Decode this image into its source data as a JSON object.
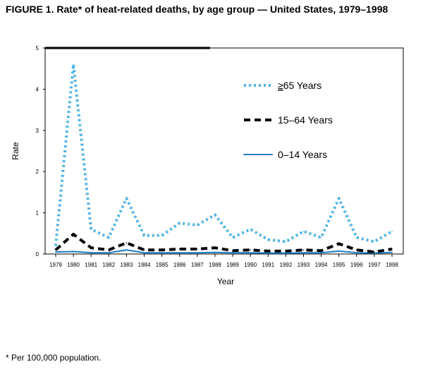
{
  "figure": {
    "title": "FIGURE 1. Rate* of heat-related deaths, by age group — United States, 1979–1998",
    "footnote": "* Per 100,000 population."
  },
  "chart_data": {
    "type": "line",
    "title": "FIGURE 1. Rate* of heat-related deaths, by age group — United States, 1979–1998",
    "xlabel": "Year",
    "ylabel": "Rate",
    "categories": [
      "1979",
      "1980",
      "1981",
      "1982",
      "1983",
      "1984",
      "1985",
      "1986",
      "1987",
      "1988",
      "1989",
      "1990",
      "1991",
      "1992",
      "1993",
      "1994",
      "1995",
      "1996",
      "1997",
      "1998"
    ],
    "ylim": [
      0,
      5
    ],
    "yticks": [
      0,
      1,
      2,
      3,
      4,
      5
    ],
    "grid": false,
    "legend_position": "top-right",
    "series": [
      {
        "name": "≥65 Years",
        "name_parts": [
          "",
          "≥",
          "65 Years"
        ],
        "color": "#4fb3e3",
        "style": "dotted",
        "values": [
          0.2,
          4.6,
          0.6,
          0.4,
          1.35,
          0.45,
          0.45,
          0.75,
          0.7,
          0.95,
          0.4,
          0.6,
          0.35,
          0.3,
          0.55,
          0.4,
          1.35,
          0.4,
          0.3,
          0.55
        ]
      },
      {
        "name": "15–64 Years",
        "color": "#000000",
        "style": "dashed",
        "values": [
          0.1,
          0.48,
          0.15,
          0.1,
          0.27,
          0.1,
          0.1,
          0.12,
          0.12,
          0.15,
          0.08,
          0.1,
          0.07,
          0.07,
          0.1,
          0.08,
          0.25,
          0.1,
          0.05,
          0.12
        ]
      },
      {
        "name": "0–14 Years",
        "color": "#1b7fc1",
        "style": "solid",
        "values": [
          0.05,
          0.06,
          0.03,
          0.03,
          0.1,
          0.03,
          0.03,
          0.03,
          0.03,
          0.04,
          0.03,
          0.03,
          0.02,
          0.02,
          0.03,
          0.03,
          0.07,
          0.03,
          0.02,
          0.04
        ]
      }
    ]
  }
}
